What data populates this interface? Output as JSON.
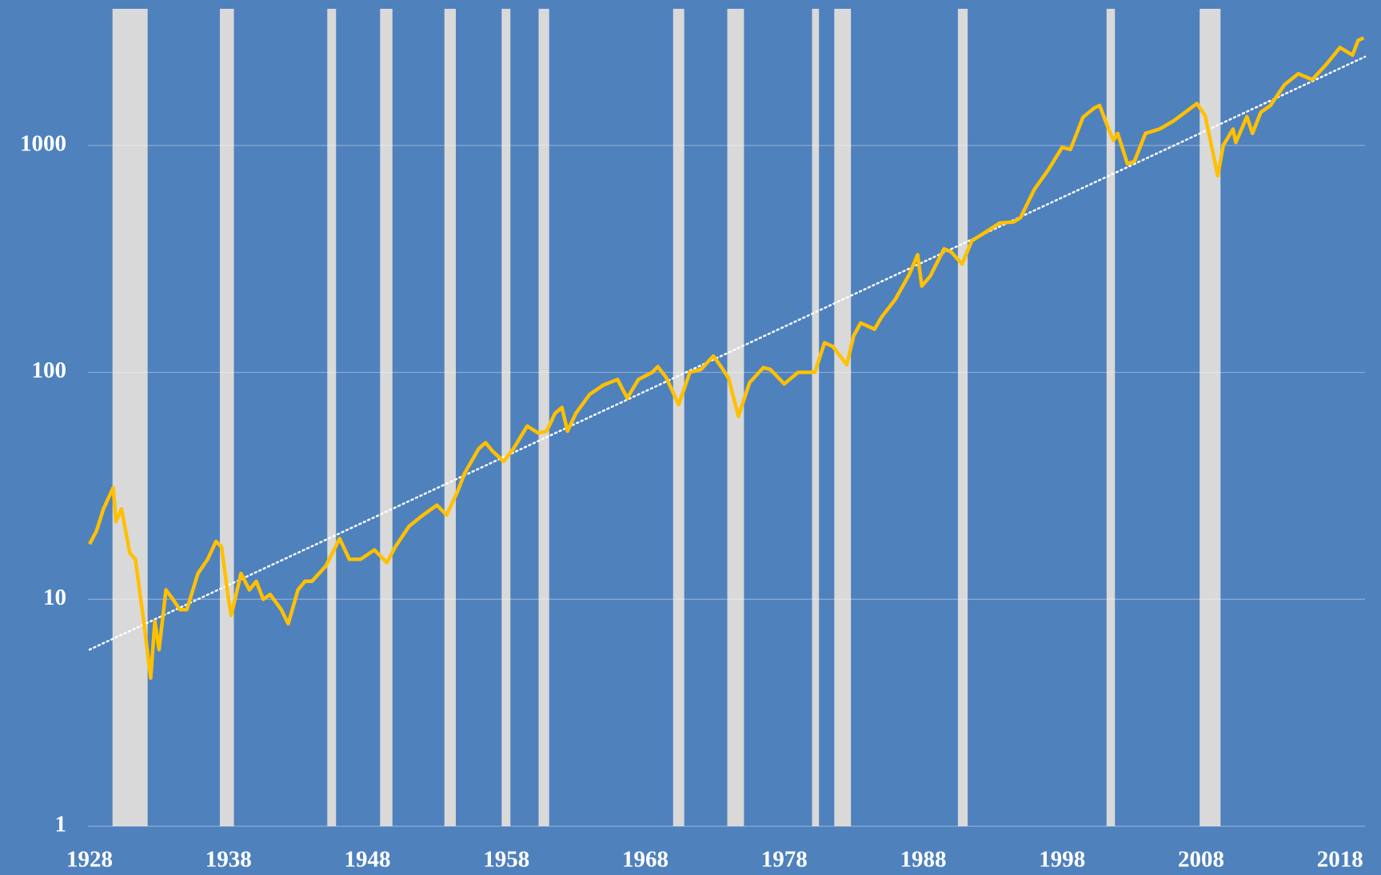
{
  "chart_data": {
    "type": "line",
    "yscale": "log",
    "grid": true,
    "background": "#4f81bd",
    "xlim": [
      1928,
      2019.8
    ],
    "ylim": [
      1,
      4000
    ],
    "xticks": [
      1928,
      1938,
      1948,
      1958,
      1968,
      1978,
      1988,
      1998,
      2008,
      2018
    ],
    "yticks": [
      1,
      10,
      100,
      1000
    ],
    "x": [
      1928.0,
      1928.5,
      1929.0,
      1929.7,
      1929.9,
      1930.3,
      1930.9,
      1931.3,
      1931.9,
      1932.4,
      1932.7,
      1933.0,
      1933.5,
      1934.0,
      1934.5,
      1935.0,
      1935.8,
      1936.5,
      1937.1,
      1937.5,
      1938.0,
      1938.2,
      1938.9,
      1939.5,
      1940.0,
      1940.5,
      1941.0,
      1941.8,
      1942.3,
      1943.0,
      1943.5,
      1944.0,
      1945.0,
      1946.0,
      1946.7,
      1947.5,
      1948.5,
      1949.4,
      1950.0,
      1951.0,
      1952.0,
      1953.0,
      1953.7,
      1954.5,
      1955.0,
      1956.0,
      1956.5,
      1957.0,
      1957.8,
      1958.5,
      1959.5,
      1960.3,
      1960.9,
      1961.5,
      1962.0,
      1962.4,
      1963.0,
      1964.0,
      1965.0,
      1966.0,
      1966.7,
      1967.5,
      1968.5,
      1968.9,
      1969.5,
      1970.4,
      1971.2,
      1972.0,
      1972.9,
      1973.5,
      1974.0,
      1974.7,
      1975.5,
      1976.5,
      1977.0,
      1978.0,
      1979.0,
      1980.2,
      1980.9,
      1981.5,
      1982.5,
      1983.0,
      1983.5,
      1984.5,
      1985.0,
      1986.0,
      1987.0,
      1987.6,
      1987.9,
      1988.5,
      1989.5,
      1990.0,
      1990.8,
      1991.5,
      1992.5,
      1993.5,
      1994.5,
      1995.0,
      1996.0,
      1997.0,
      1998.0,
      1998.6,
      1999.5,
      2000.3,
      2000.7,
      2001.3,
      2001.7,
      2002.0,
      2002.7,
      2003.2,
      2004.0,
      2005.0,
      2006.0,
      2007.0,
      2007.7,
      2008.3,
      2008.9,
      2009.2,
      2009.6,
      2010.3,
      2010.5,
      2011.3,
      2011.7,
      2012.3,
      2013.0,
      2014.0,
      2015.0,
      2016.0,
      2017.0,
      2018.0,
      2018.9,
      2019.3,
      2019.7
    ],
    "series": [
      {
        "color": "#ffc000",
        "values": [
          17.5,
          20,
          25,
          31,
          22,
          25,
          16,
          15,
          8,
          4.5,
          8,
          6,
          11,
          10,
          9,
          9,
          13,
          15,
          18,
          17,
          10,
          8.5,
          13,
          11,
          12,
          10,
          10.5,
          9,
          7.8,
          11,
          12,
          12,
          14,
          18.5,
          15,
          15,
          16.5,
          14.5,
          17,
          21,
          23.5,
          26,
          23.5,
          30,
          36,
          46,
          49,
          45,
          40.5,
          46,
          58,
          54,
          55,
          66,
          70,
          55,
          66,
          80,
          88,
          93,
          77,
          93,
          100,
          106,
          95,
          72,
          100,
          103,
          118,
          105,
          94,
          64,
          90,
          105,
          103,
          89,
          100,
          100,
          135,
          130,
          108,
          145,
          165,
          155,
          175,
          210,
          270,
          330,
          240,
          265,
          350,
          340,
          300,
          380,
          415,
          455,
          460,
          480,
          640,
          780,
          980,
          960,
          1330,
          1460,
          1500,
          1200,
          1050,
          1130,
          830,
          850,
          1130,
          1180,
          1280,
          1420,
          1530,
          1350,
          900,
          735,
          1000,
          1180,
          1030,
          1340,
          1130,
          1400,
          1500,
          1850,
          2070,
          1950,
          2270,
          2700,
          2500,
          2900,
          2980
        ]
      }
    ],
    "trend": {
      "color": "#ffffff",
      "x": [
        1928,
        2019.8
      ],
      "values": [
        6,
        2460
      ]
    },
    "recession_color": "#d9d9d9",
    "recessions": [
      [
        1929.65,
        1932.18
      ],
      [
        1937.38,
        1938.39
      ],
      [
        1945.11,
        1945.74
      ],
      [
        1948.91,
        1949.8
      ],
      [
        1953.54,
        1954.36
      ],
      [
        1957.66,
        1958.29
      ],
      [
        1960.32,
        1961.08
      ],
      [
        1970.0,
        1970.8
      ],
      [
        1973.9,
        1975.1
      ],
      [
        1980.0,
        1980.5
      ],
      [
        1981.6,
        1982.8
      ],
      [
        1990.5,
        1991.2
      ],
      [
        2001.2,
        2001.8
      ],
      [
        2007.9,
        2009.4
      ]
    ]
  }
}
